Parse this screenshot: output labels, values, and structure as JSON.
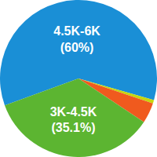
{
  "chart_data": {
    "type": "pie",
    "categories": [
      "4.5K-6K",
      null,
      null,
      "3K-4.5K"
    ],
    "values": [
      60,
      0.7,
      4.2,
      35.1
    ],
    "value_labels": [
      "(60%)",
      null,
      null,
      "(35.1%)"
    ],
    "colors": [
      "#1a8fd6",
      "#c6d60e",
      "#f05a1e",
      "#5cb531"
    ],
    "data_labels": true
  }
}
